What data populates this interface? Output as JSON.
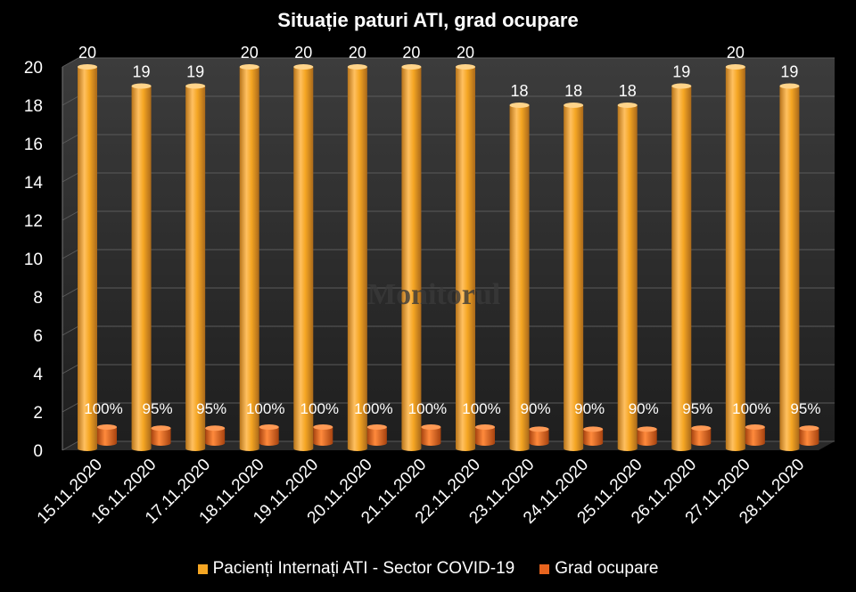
{
  "watermark": "Monitorul",
  "chart_data": {
    "type": "bar",
    "title": "Situație paturi ATI, grad ocupare",
    "categories": [
      "15.11.2020",
      "16.11.2020",
      "17.11.2020",
      "18.11.2020",
      "19.11.2020",
      "20.11.2020",
      "21.11.2020",
      "22.11.2020",
      "23.11.2020",
      "24.11.2020",
      "25.11.2020",
      "26.11.2020",
      "27.11.2020",
      "28.11.2020"
    ],
    "series": [
      {
        "name": "Pacienți Internați ATI - Sector COVID-19",
        "color": "#F5A623",
        "values": [
          20,
          19,
          19,
          20,
          20,
          20,
          20,
          20,
          18,
          18,
          18,
          19,
          20,
          19
        ],
        "labels": [
          "20",
          "19",
          "19",
          "20",
          "20",
          "20",
          "20",
          "20",
          "18",
          "18",
          "18",
          "19",
          "20",
          "19"
        ]
      },
      {
        "name": "Grad ocupare",
        "color": "#E8641E",
        "values": [
          1.0,
          0.95,
          0.95,
          1.0,
          1.0,
          1.0,
          1.0,
          1.0,
          0.9,
          0.9,
          0.9,
          0.95,
          1.0,
          0.95
        ],
        "labels": [
          "100%",
          "95%",
          "95%",
          "100%",
          "100%",
          "100%",
          "100%",
          "100%",
          "90%",
          "90%",
          "90%",
          "95%",
          "100%",
          "95%"
        ]
      }
    ],
    "yticks": [
      "0",
      "2",
      "4",
      "6",
      "8",
      "10",
      "12",
      "14",
      "16",
      "18",
      "20"
    ],
    "ylim": [
      0,
      20
    ],
    "grid": true,
    "legend_position": "bottom"
  }
}
